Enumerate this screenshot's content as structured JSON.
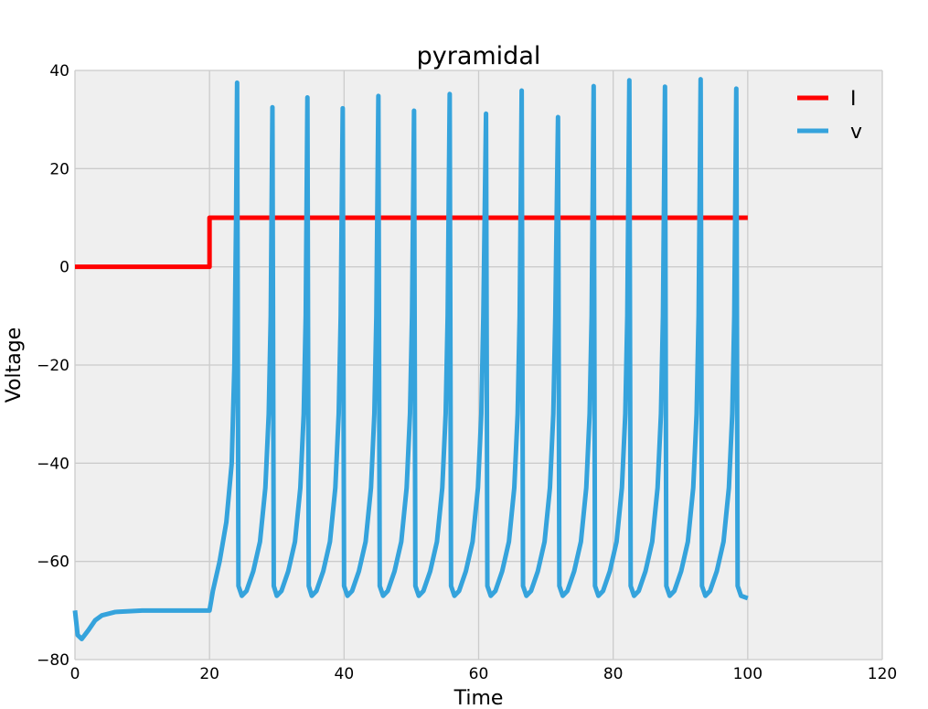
{
  "chart_data": {
    "type": "line",
    "title": "pyramidal",
    "xlabel": "Time",
    "ylabel": "Voltage",
    "xlim": [
      0,
      120
    ],
    "ylim": [
      -80,
      40
    ],
    "xticks": [
      0,
      20,
      40,
      60,
      80,
      100,
      120
    ],
    "yticks": [
      -80,
      -60,
      -40,
      -20,
      0,
      20,
      40
    ],
    "xtick_labels": [
      "0",
      "20",
      "40",
      "60",
      "80",
      "100",
      "120"
    ],
    "ytick_labels": [
      "−80",
      "−60",
      "−40",
      "−20",
      "0",
      "20",
      "40"
    ],
    "grid": true,
    "legend_position": "top-right",
    "background": "#efefef",
    "series": [
      {
        "name": "I",
        "color": "#ff0000",
        "points": [
          [
            0,
            0
          ],
          [
            20,
            0
          ],
          [
            20,
            10
          ],
          [
            100,
            10
          ]
        ]
      },
      {
        "name": "v",
        "color": "#35a3dc",
        "points": [
          [
            0,
            -70
          ],
          [
            0.4,
            -75
          ],
          [
            1,
            -75.8
          ],
          [
            2,
            -74
          ],
          [
            3,
            -72
          ],
          [
            4,
            -71
          ],
          [
            6,
            -70.3
          ],
          [
            10,
            -70
          ],
          [
            20,
            -70
          ],
          [
            20.5,
            -66
          ],
          [
            21.5,
            -60
          ],
          [
            22.5,
            -52
          ],
          [
            23.3,
            -40
          ],
          [
            23.7,
            -20
          ],
          [
            23.95,
            10
          ],
          [
            24.1,
            37.5
          ],
          [
            24.3,
            -65
          ],
          [
            24.8,
            -67
          ],
          [
            25.5,
            -66
          ],
          [
            26.5,
            -62
          ],
          [
            27.5,
            -56
          ],
          [
            28.3,
            -45
          ],
          [
            28.8,
            -30
          ],
          [
            29.1,
            -10
          ],
          [
            29.35,
            32.5
          ],
          [
            29.55,
            -65
          ],
          [
            30.0,
            -67
          ],
          [
            30.7,
            -66
          ],
          [
            31.7,
            -62
          ],
          [
            32.7,
            -56
          ],
          [
            33.5,
            -45
          ],
          [
            34.0,
            -30
          ],
          [
            34.3,
            -10
          ],
          [
            34.55,
            34.5
          ],
          [
            34.75,
            -65
          ],
          [
            35.2,
            -67
          ],
          [
            35.9,
            -66
          ],
          [
            36.9,
            -62
          ],
          [
            37.9,
            -56
          ],
          [
            38.7,
            -45
          ],
          [
            39.2,
            -30
          ],
          [
            39.5,
            -10
          ],
          [
            39.8,
            32.3
          ],
          [
            40.0,
            -65
          ],
          [
            40.5,
            -67
          ],
          [
            41.2,
            -66
          ],
          [
            42.2,
            -62
          ],
          [
            43.2,
            -56
          ],
          [
            44.0,
            -45
          ],
          [
            44.5,
            -30
          ],
          [
            44.8,
            -10
          ],
          [
            45.1,
            34.8
          ],
          [
            45.3,
            -65
          ],
          [
            45.8,
            -67
          ],
          [
            46.5,
            -66
          ],
          [
            47.5,
            -62
          ],
          [
            48.5,
            -56
          ],
          [
            49.3,
            -45
          ],
          [
            49.8,
            -30
          ],
          [
            50.1,
            -10
          ],
          [
            50.4,
            31.8
          ],
          [
            50.6,
            -65
          ],
          [
            51.1,
            -67
          ],
          [
            51.8,
            -66
          ],
          [
            52.8,
            -62
          ],
          [
            53.8,
            -56
          ],
          [
            54.6,
            -45
          ],
          [
            55.1,
            -30
          ],
          [
            55.4,
            -10
          ],
          [
            55.7,
            35.2
          ],
          [
            55.9,
            -65
          ],
          [
            56.4,
            -67
          ],
          [
            57.1,
            -66
          ],
          [
            58.1,
            -62
          ],
          [
            59.1,
            -56
          ],
          [
            59.9,
            -45
          ],
          [
            60.4,
            -30
          ],
          [
            60.7,
            -10
          ],
          [
            61.1,
            31.2
          ],
          [
            61.3,
            -65
          ],
          [
            61.8,
            -67
          ],
          [
            62.5,
            -66
          ],
          [
            63.5,
            -62
          ],
          [
            64.5,
            -56
          ],
          [
            65.3,
            -45
          ],
          [
            65.8,
            -30
          ],
          [
            66.1,
            -10
          ],
          [
            66.4,
            35.9
          ],
          [
            66.6,
            -65
          ],
          [
            67.1,
            -67
          ],
          [
            67.8,
            -66
          ],
          [
            68.8,
            -62
          ],
          [
            69.8,
            -56
          ],
          [
            70.6,
            -45
          ],
          [
            71.1,
            -30
          ],
          [
            71.4,
            -10
          ],
          [
            71.8,
            30.5
          ],
          [
            72.0,
            -65
          ],
          [
            72.5,
            -67
          ],
          [
            73.2,
            -66
          ],
          [
            74.2,
            -62
          ],
          [
            75.2,
            -56
          ],
          [
            76.0,
            -45
          ],
          [
            76.5,
            -30
          ],
          [
            76.8,
            -10
          ],
          [
            77.1,
            36.8
          ],
          [
            77.3,
            -65
          ],
          [
            77.8,
            -67
          ],
          [
            78.5,
            -66
          ],
          [
            79.5,
            -62
          ],
          [
            80.5,
            -56
          ],
          [
            81.3,
            -45
          ],
          [
            81.8,
            -30
          ],
          [
            82.1,
            -10
          ],
          [
            82.4,
            38.0
          ],
          [
            82.6,
            -65
          ],
          [
            83.1,
            -67
          ],
          [
            83.8,
            -66
          ],
          [
            84.8,
            -62
          ],
          [
            85.8,
            -56
          ],
          [
            86.6,
            -45
          ],
          [
            87.1,
            -30
          ],
          [
            87.4,
            -10
          ],
          [
            87.7,
            36.7
          ],
          [
            87.9,
            -65
          ],
          [
            88.4,
            -67
          ],
          [
            89.1,
            -66
          ],
          [
            90.1,
            -62
          ],
          [
            91.1,
            -56
          ],
          [
            91.9,
            -45
          ],
          [
            92.4,
            -30
          ],
          [
            92.7,
            -10
          ],
          [
            93.0,
            38.2
          ],
          [
            93.2,
            -65
          ],
          [
            93.7,
            -67
          ],
          [
            94.4,
            -66
          ],
          [
            95.4,
            -62
          ],
          [
            96.4,
            -56
          ],
          [
            97.2,
            -45
          ],
          [
            97.7,
            -30
          ],
          [
            98.0,
            -10
          ],
          [
            98.3,
            36.3
          ],
          [
            98.5,
            -65
          ],
          [
            99.0,
            -67
          ],
          [
            100,
            -67.5
          ]
        ]
      }
    ]
  }
}
